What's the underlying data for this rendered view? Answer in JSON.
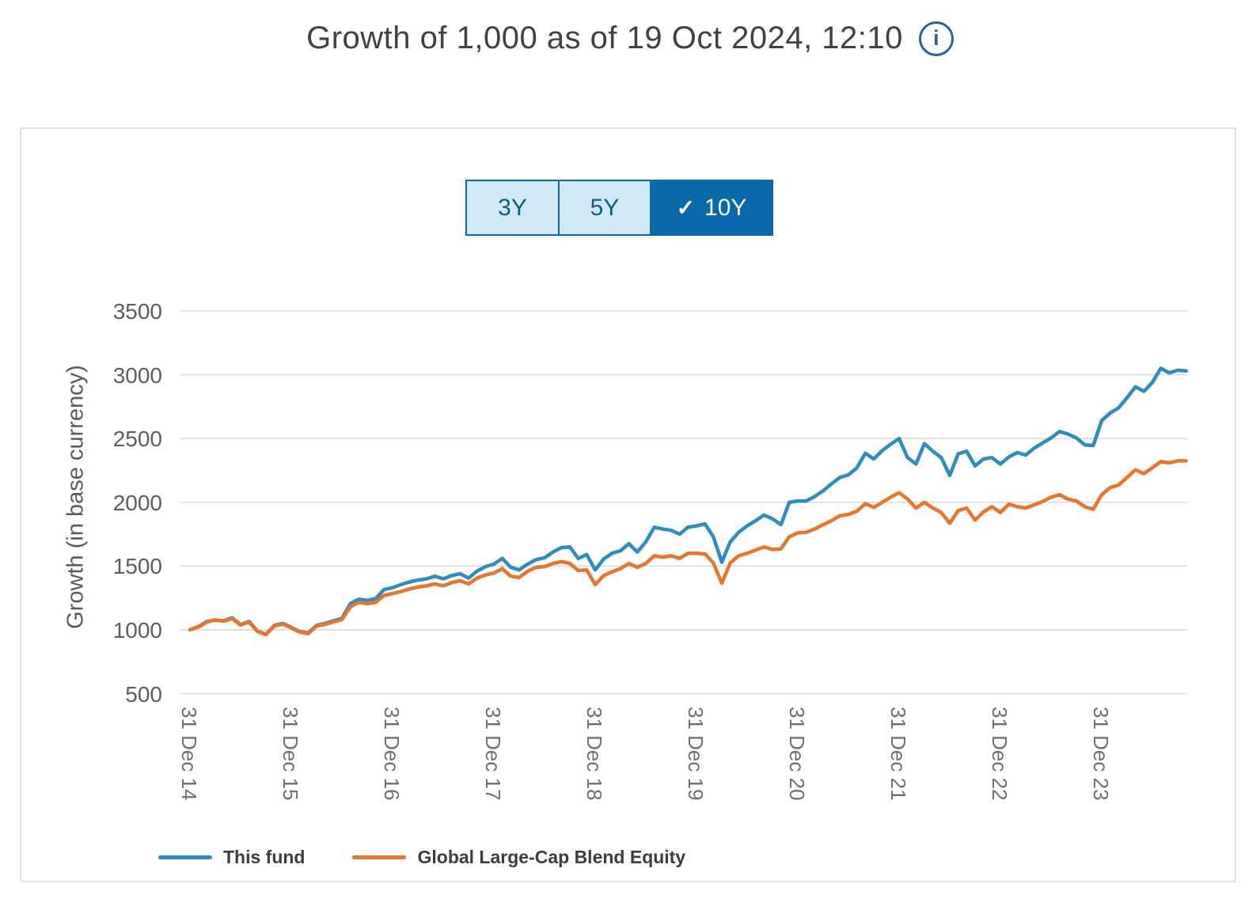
{
  "title": {
    "text": "Growth of 1,000 as of 19 Oct 2024, 12:10",
    "info_glyph": "i"
  },
  "period_selector": {
    "options": [
      {
        "label": "3Y",
        "selected": false
      },
      {
        "label": "5Y",
        "selected": false
      },
      {
        "label": "10Y",
        "selected": true,
        "check_glyph": "✓"
      }
    ]
  },
  "chart_data": {
    "type": "line",
    "title": "Growth of 1,000 as of 19 Oct 2024, 12:10",
    "xlabel": "",
    "ylabel": "Growth (in base currency)",
    "ylim": [
      500,
      3500
    ],
    "yticks": [
      500,
      1000,
      1500,
      2000,
      2500,
      3000,
      3500
    ],
    "x_unit": "months since 31 Dec 2014, monthly points through Oct 2024",
    "xticklabels": [
      "31 Dec 14",
      "31 Dec 15",
      "31 Dec 16",
      "31 Dec 17",
      "31 Dec 18",
      "31 Dec 19",
      "31 Dec 20",
      "31 Dec 21",
      "31 Dec 22",
      "31 Dec 23"
    ],
    "xtick_month_index": [
      0,
      12,
      24,
      36,
      48,
      60,
      72,
      84,
      96,
      108
    ],
    "grid": true,
    "legend_position": "bottom",
    "series": [
      {
        "name": "This fund",
        "color": "#2e8cbf",
        "values": [
          1000,
          1025,
          1065,
          1075,
          1070,
          1095,
          1040,
          1065,
          990,
          965,
          1035,
          1050,
          1020,
          985,
          975,
          1035,
          1050,
          1070,
          1090,
          1205,
          1240,
          1230,
          1245,
          1315,
          1330,
          1355,
          1375,
          1390,
          1400,
          1420,
          1400,
          1425,
          1440,
          1405,
          1460,
          1495,
          1515,
          1560,
          1490,
          1470,
          1515,
          1550,
          1565,
          1610,
          1645,
          1650,
          1560,
          1590,
          1470,
          1555,
          1600,
          1620,
          1675,
          1610,
          1690,
          1805,
          1790,
          1780,
          1750,
          1805,
          1815,
          1830,
          1730,
          1530,
          1690,
          1765,
          1815,
          1855,
          1900,
          1870,
          1825,
          2000,
          2010,
          2010,
          2045,
          2090,
          2145,
          2195,
          2215,
          2270,
          2385,
          2340,
          2405,
          2455,
          2500,
          2350,
          2300,
          2460,
          2400,
          2350,
          2210,
          2380,
          2400,
          2285,
          2340,
          2350,
          2300,
          2355,
          2390,
          2370,
          2425,
          2465,
          2505,
          2555,
          2535,
          2505,
          2450,
          2445,
          2640,
          2700,
          2740,
          2820,
          2905,
          2870,
          2940,
          3050,
          3015,
          3035,
          3030
        ]
      },
      {
        "name": "Global Large-Cap Blend Equity",
        "color": "#e8752a",
        "values": [
          1000,
          1022,
          1060,
          1078,
          1068,
          1088,
          1038,
          1060,
          988,
          962,
          1030,
          1045,
          1015,
          982,
          970,
          1030,
          1042,
          1062,
          1080,
          1180,
          1215,
          1205,
          1215,
          1270,
          1285,
          1300,
          1320,
          1335,
          1345,
          1360,
          1345,
          1370,
          1385,
          1360,
          1405,
          1430,
          1445,
          1480,
          1420,
          1410,
          1460,
          1490,
          1495,
          1520,
          1535,
          1520,
          1465,
          1470,
          1355,
          1425,
          1455,
          1480,
          1520,
          1490,
          1520,
          1580,
          1570,
          1580,
          1560,
          1600,
          1600,
          1595,
          1525,
          1365,
          1525,
          1580,
          1600,
          1625,
          1650,
          1630,
          1635,
          1730,
          1760,
          1765,
          1790,
          1825,
          1855,
          1895,
          1905,
          1930,
          1990,
          1960,
          2000,
          2040,
          2075,
          2025,
          1955,
          2000,
          1955,
          1920,
          1835,
          1935,
          1955,
          1860,
          1925,
          1965,
          1920,
          1985,
          1965,
          1955,
          1980,
          2005,
          2040,
          2060,
          2025,
          2010,
          1965,
          1945,
          2060,
          2115,
          2135,
          2195,
          2255,
          2225,
          2270,
          2320,
          2310,
          2325,
          2325
        ]
      }
    ]
  },
  "colors": {
    "tab_selected_bg": "#0a69a8",
    "tab_unselected_bg": "#cfe9f7",
    "tab_unselected_text": "#0f5c87",
    "gridline": "#dcdcdc",
    "info_icon": "#2b5f9e",
    "card_border": "#e2e2e2"
  }
}
